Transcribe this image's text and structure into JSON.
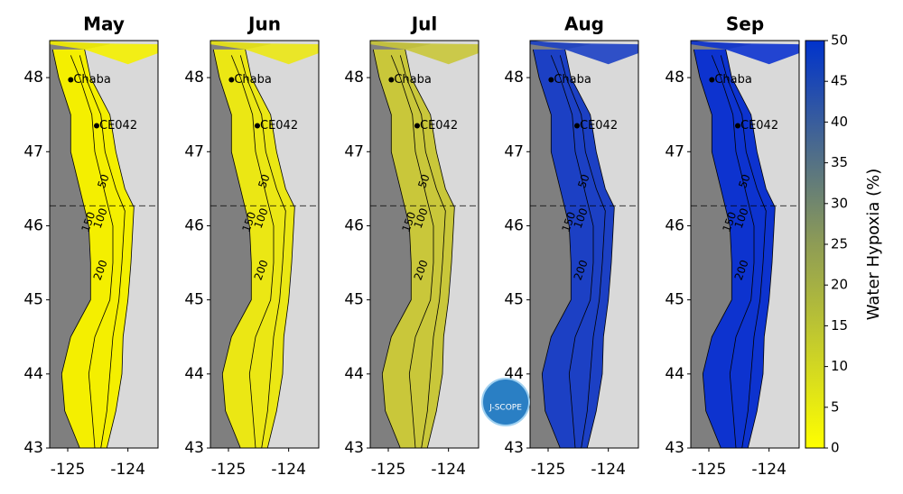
{
  "chart_data": {
    "type": "map",
    "xlim": [
      -125.3,
      -123.5
    ],
    "ylim": [
      43,
      48.5
    ],
    "xticks": [
      -125,
      -124
    ],
    "yticks": [
      43,
      44,
      45,
      46,
      47,
      48
    ],
    "panels": [
      {
        "title": "May",
        "color": "#f4ef00"
      },
      {
        "title": "Jun",
        "color": "#ebe714"
      },
      {
        "title": "Jul",
        "color": "#c9c73a"
      },
      {
        "title": "Aug",
        "color": "#1c40c4"
      },
      {
        "title": "Sep",
        "color": "#0d33cf"
      }
    ],
    "stations": [
      "Chaba",
      "CE042"
    ],
    "contour_labels": [
      "50",
      "100",
      "150",
      "200"
    ],
    "colorbar": {
      "label": "Water Hypoxia (%)",
      "ylim": [
        0,
        50
      ],
      "ticks": [
        0,
        5,
        10,
        15,
        20,
        25,
        30,
        35,
        40,
        45,
        50
      ],
      "colors": [
        "#ffff00",
        "#8e9c55",
        "#0033cc"
      ]
    },
    "logo": "J-SCOPE"
  }
}
